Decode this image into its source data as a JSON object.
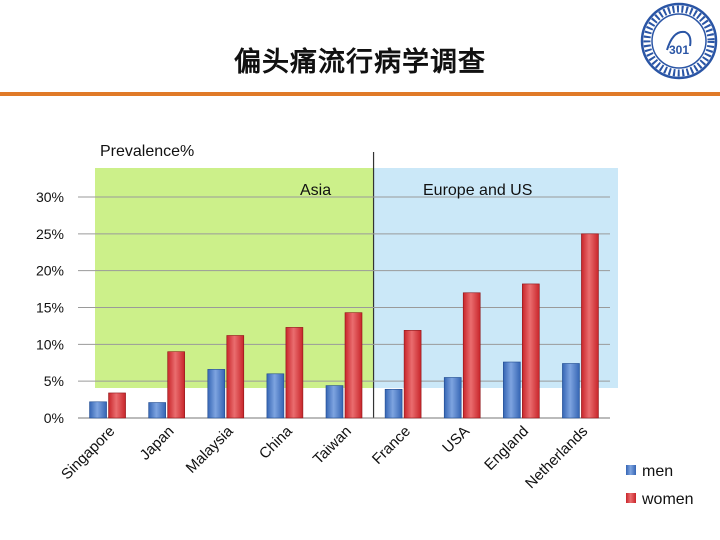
{
  "slide": {
    "title": "偏头痛流行病学调查"
  },
  "colors": {
    "title_rule": "#e07a27",
    "asia_region": "#ccf08a",
    "europe_region": "#cbe8f8",
    "men": "#3565b4",
    "women": "#c8252a"
  },
  "logo": {
    "icon": "institution-seal-icon",
    "center_text": "301"
  },
  "chart_data": {
    "type": "bar",
    "ylabel": "Prevalence%",
    "ylim": [
      0,
      30
    ],
    "yticks": [
      "0%",
      "5%",
      "10%",
      "15%",
      "20%",
      "25%",
      "30%"
    ],
    "grid": true,
    "legend_position": "bottom-right",
    "regions": [
      {
        "label": "Asia",
        "categories": [
          "Singapore",
          "Japan",
          "Malaysia",
          "China",
          "Taiwan"
        ]
      },
      {
        "label": "Europe and US",
        "categories": [
          "France",
          "USA",
          "England",
          "Netherlands"
        ]
      }
    ],
    "categories": [
      "Singapore",
      "Japan",
      "Malaysia",
      "China",
      "Taiwan",
      "France",
      "USA",
      "England",
      "Netherlands"
    ],
    "series": [
      {
        "name": "men",
        "values": [
          2.2,
          2.1,
          6.6,
          6.0,
          4.4,
          3.9,
          5.5,
          7.6,
          7.4
        ]
      },
      {
        "name": "women",
        "values": [
          3.4,
          9.0,
          11.2,
          12.3,
          14.3,
          11.9,
          17.0,
          18.2,
          25.0
        ]
      }
    ]
  }
}
